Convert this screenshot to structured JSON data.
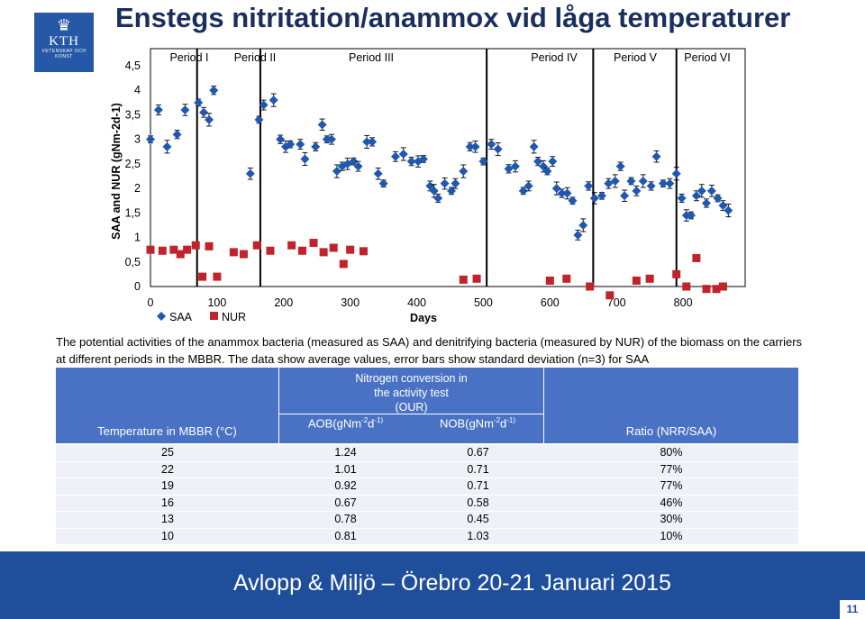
{
  "header": {
    "title": "Enstegs nitritation/anammox vid låga temperaturer",
    "logo_text": "KTH",
    "logo_subtext": "VETENSKAP OCH KONST"
  },
  "chart_data": {
    "type": "scatter",
    "title": "",
    "xlabel": "Days",
    "ylabel": "SAA and NUR (gNm-2d-1)",
    "xlim": [
      0,
      900
    ],
    "ylim": [
      0,
      4.5
    ],
    "xticks": [
      "0",
      "100",
      "200",
      "300",
      "400",
      "500",
      "600",
      "700",
      "800"
    ],
    "yticks": [
      "0",
      "0,5",
      "1",
      "1,5",
      "2",
      "2,5",
      "3",
      "3,5",
      "4",
      "4,5"
    ],
    "periods": [
      "Period I",
      "Period II",
      "Period III",
      "Period IV",
      "Period V",
      "Period VI"
    ],
    "period_boundaries": [
      70,
      165,
      505,
      665,
      790
    ],
    "legend": [
      "SAA",
      "NUR"
    ],
    "colors": {
      "saa": "#2058b0",
      "nur": "#c0232b"
    },
    "series": [
      {
        "name": "SAA",
        "points": [
          [
            0,
            3.0
          ],
          [
            12,
            3.6
          ],
          [
            25,
            2.85
          ],
          [
            40,
            3.1
          ],
          [
            52,
            3.6
          ],
          [
            72,
            3.75
          ],
          [
            80,
            3.55
          ],
          [
            88,
            3.4
          ],
          [
            95,
            4.0
          ],
          [
            150,
            2.3
          ],
          [
            163,
            3.4
          ],
          [
            170,
            3.7
          ],
          [
            185,
            3.8
          ],
          [
            195,
            3.0
          ],
          [
            203,
            2.85
          ],
          [
            210,
            2.9
          ],
          [
            225,
            2.9
          ],
          [
            232,
            2.6
          ],
          [
            248,
            2.85
          ],
          [
            258,
            3.3
          ],
          [
            265,
            3.0
          ],
          [
            272,
            3.0
          ],
          [
            280,
            2.35
          ],
          [
            288,
            2.45
          ],
          [
            296,
            2.5
          ],
          [
            305,
            2.55
          ],
          [
            312,
            2.45
          ],
          [
            325,
            2.95
          ],
          [
            333,
            2.95
          ],
          [
            342,
            2.3
          ],
          [
            350,
            2.1
          ],
          [
            368,
            2.65
          ],
          [
            380,
            2.7
          ],
          [
            392,
            2.55
          ],
          [
            402,
            2.55
          ],
          [
            410,
            2.6
          ],
          [
            420,
            2.05
          ],
          [
            426,
            1.95
          ],
          [
            432,
            1.8
          ],
          [
            442,
            2.1
          ],
          [
            452,
            1.95
          ],
          [
            458,
            2.1
          ],
          [
            470,
            2.35
          ],
          [
            480,
            2.85
          ],
          [
            488,
            2.85
          ],
          [
            500,
            2.55
          ],
          [
            512,
            2.9
          ],
          [
            522,
            2.8
          ],
          [
            538,
            2.4
          ],
          [
            548,
            2.45
          ],
          [
            560,
            1.95
          ],
          [
            568,
            2.05
          ],
          [
            576,
            2.85
          ],
          [
            582,
            2.55
          ],
          [
            590,
            2.45
          ],
          [
            596,
            2.35
          ],
          [
            604,
            2.55
          ],
          [
            610,
            2.0
          ],
          [
            618,
            1.9
          ],
          [
            626,
            1.9
          ],
          [
            634,
            1.75
          ],
          [
            642,
            1.05
          ],
          [
            650,
            1.25
          ],
          [
            658,
            2.05
          ],
          [
            667,
            1.8
          ],
          [
            678,
            1.85
          ],
          [
            688,
            2.1
          ],
          [
            698,
            2.15
          ],
          [
            706,
            2.45
          ],
          [
            712,
            1.85
          ],
          [
            722,
            2.15
          ],
          [
            730,
            1.95
          ],
          [
            740,
            2.15
          ],
          [
            752,
            2.05
          ],
          [
            760,
            2.65
          ],
          [
            770,
            2.1
          ],
          [
            780,
            2.1
          ],
          [
            790,
            2.3
          ],
          [
            798,
            1.8
          ],
          [
            805,
            1.45
          ],
          [
            812,
            1.45
          ],
          [
            820,
            1.85
          ],
          [
            828,
            1.95
          ],
          [
            835,
            1.7
          ],
          [
            843,
            1.95
          ],
          [
            852,
            1.8
          ],
          [
            860,
            1.65
          ],
          [
            868,
            1.55
          ]
        ]
      },
      {
        "name": "NUR",
        "points": [
          [
            0,
            0.75
          ],
          [
            18,
            0.73
          ],
          [
            35,
            0.75
          ],
          [
            45,
            0.66
          ],
          [
            55,
            0.75
          ],
          [
            68,
            0.84
          ],
          [
            78,
            0.2
          ],
          [
            88,
            0.82
          ],
          [
            100,
            0.2
          ],
          [
            125,
            0.7
          ],
          [
            140,
            0.66
          ],
          [
            160,
            0.84
          ],
          [
            180,
            0.73
          ],
          [
            212,
            0.84
          ],
          [
            228,
            0.73
          ],
          [
            245,
            0.89
          ],
          [
            260,
            0.7
          ],
          [
            275,
            0.79
          ],
          [
            290,
            0.46
          ],
          [
            300,
            0.75
          ],
          [
            320,
            0.72
          ],
          [
            470,
            0.14
          ],
          [
            490,
            0.16
          ],
          [
            600,
            0.12
          ],
          [
            625,
            0.16
          ],
          [
            660,
            0.0
          ],
          [
            690,
            -0.18
          ],
          [
            730,
            0.12
          ],
          [
            750,
            0.16
          ],
          [
            790,
            0.25
          ],
          [
            805,
            0.0
          ],
          [
            820,
            0.58
          ],
          [
            835,
            -0.05
          ],
          [
            850,
            -0.05
          ],
          [
            860,
            0.0
          ]
        ]
      }
    ]
  },
  "caption": "The potential activities of the anammox bacteria (measured as SAA) and denitrifying bacteria (measured by NUR) of the biomass on the carriers at different periods in the MBBR. The data show average values, error bars show standard deviation (n=3) for SAA",
  "table": {
    "temp_header": "Temperature in MBBR (°C)",
    "group_header_lines": [
      "Nitrogen conversion in",
      "the activity test",
      "(OUR)"
    ],
    "aob_header": "AOB(gNm",
    "nob_header": "NOB(gNm",
    "unit_exp1": "-2",
    "unit_d": "d",
    "unit_exp2": "-1)",
    "ratio_header": "Ratio (NRR/SAA)",
    "rows": [
      {
        "temp": "25",
        "aob": "1.24",
        "nob": "0.67",
        "ratio": "80%"
      },
      {
        "temp": "22",
        "aob": "1.01",
        "nob": "0.71",
        "ratio": "77%"
      },
      {
        "temp": "19",
        "aob": "0.92",
        "nob": "0.71",
        "ratio": "77%"
      },
      {
        "temp": "16",
        "aob": "0.67",
        "nob": "0.58",
        "ratio": "46%"
      },
      {
        "temp": "13",
        "aob": "0.78",
        "nob": "0.45",
        "ratio": "30%"
      },
      {
        "temp": "10",
        "aob": "0.81",
        "nob": "1.03",
        "ratio": "10%"
      }
    ]
  },
  "footer": {
    "text": "Avlopp & Miljö – Örebro 20-21 Januari 2015",
    "page": "11"
  }
}
